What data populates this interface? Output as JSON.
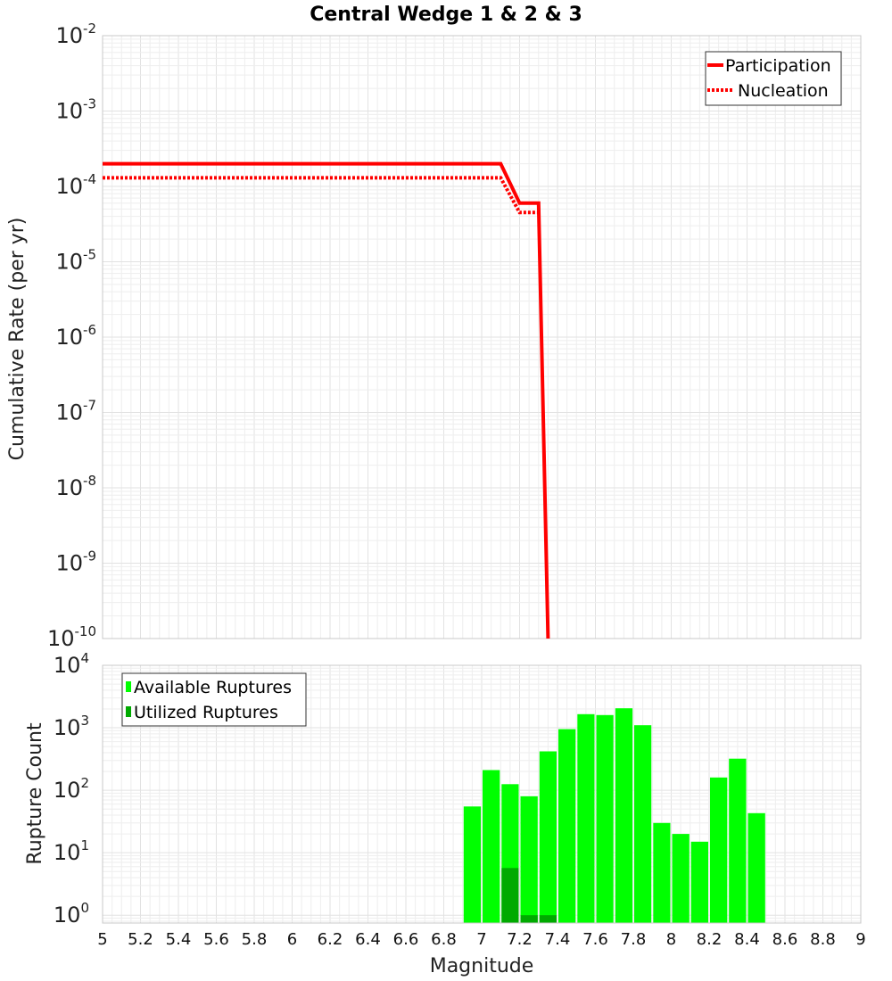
{
  "chart_data": [
    {
      "type": "line",
      "title": "Central Wedge 1 & 2 & 3",
      "xlabel": "",
      "ylabel": "Cumulative Rate (per yr)",
      "yscale": "log",
      "xlim": [
        5,
        9
      ],
      "ylim": [
        1e-10,
        0.01
      ],
      "ytick_exponents": [
        -10,
        -9,
        -8,
        -7,
        -6,
        -5,
        -4,
        -3,
        -2
      ],
      "grid": true,
      "legend_position": "top-right",
      "series": [
        {
          "name": "Participation",
          "style": "solid",
          "color": "#ff0000",
          "x": [
            5.0,
            7.1,
            7.2,
            7.3,
            7.35
          ],
          "y": [
            0.0002,
            0.0002,
            6e-05,
            6e-05,
            1e-10
          ]
        },
        {
          "name": "Nucleation",
          "style": "dotted",
          "color": "#ff0000",
          "x": [
            5.0,
            7.1,
            7.2,
            7.3
          ],
          "y": [
            0.00013,
            0.00013,
            4.5e-05,
            4.5e-05
          ]
        }
      ]
    },
    {
      "type": "bar",
      "title": "",
      "xlabel": "Magnitude",
      "ylabel": "Rupture Count",
      "yscale": "log",
      "xlim": [
        5,
        9
      ],
      "ylim": [
        0.75,
        10000
      ],
      "ytick_exponents": [
        0,
        1,
        2,
        3,
        4
      ],
      "xticks": [
        "5",
        "5.2",
        "5.4",
        "5.6",
        "5.8",
        "6",
        "6.2",
        "6.4",
        "6.6",
        "6.8",
        "7",
        "7.2",
        "7.4",
        "7.6",
        "7.8",
        "8",
        "8.2",
        "8.4",
        "8.6",
        "8.8",
        "9"
      ],
      "bin_width": 0.1,
      "grid": true,
      "legend_position": "top-left",
      "series": [
        {
          "name": "Available Ruptures",
          "color": "#00ff00",
          "x": [
            6.95,
            7.05,
            7.15,
            7.25,
            7.35,
            7.45,
            7.55,
            7.65,
            7.75,
            7.85,
            7.95,
            8.05,
            8.15,
            8.25,
            8.35,
            8.45
          ],
          "values": [
            55,
            210,
            125,
            80,
            420,
            950,
            1650,
            1600,
            2050,
            1100,
            30,
            20,
            15,
            160,
            320,
            43
          ]
        },
        {
          "name": "Utilized Ruptures",
          "color": "#00aa00",
          "x": [
            7.15,
            7.25,
            7.35
          ],
          "values": [
            5.7,
            1,
            1
          ]
        }
      ]
    }
  ]
}
